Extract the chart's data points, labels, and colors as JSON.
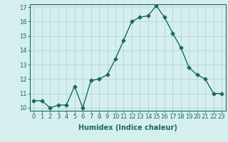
{
  "x": [
    0,
    1,
    2,
    3,
    4,
    5,
    6,
    7,
    8,
    9,
    10,
    11,
    12,
    13,
    14,
    15,
    16,
    17,
    18,
    19,
    20,
    21,
    22,
    23
  ],
  "y": [
    10.5,
    10.5,
    10.0,
    10.2,
    10.2,
    11.5,
    10.0,
    11.9,
    12.0,
    12.3,
    13.4,
    14.7,
    16.0,
    16.3,
    16.4,
    17.1,
    16.3,
    15.2,
    14.2,
    12.8,
    12.3,
    12.0,
    11.0,
    11.0
  ],
  "xlabel": "Humidex (Indice chaleur)",
  "ylim": [
    10,
    17
  ],
  "xlim": [
    -0.5,
    23.5
  ],
  "yticks": [
    10,
    11,
    12,
    13,
    14,
    15,
    16,
    17
  ],
  "xticks": [
    0,
    1,
    2,
    3,
    4,
    5,
    6,
    7,
    8,
    9,
    10,
    11,
    12,
    13,
    14,
    15,
    16,
    17,
    18,
    19,
    20,
    21,
    22,
    23
  ],
  "line_color": "#1a6b5a",
  "marker": "D",
  "marker_size": 2.5,
  "bg_color": "#d5efef",
  "grid_color": "#b8d8d8",
  "tick_label_fontsize": 6,
  "xlabel_fontsize": 7,
  "line_width": 1.0
}
